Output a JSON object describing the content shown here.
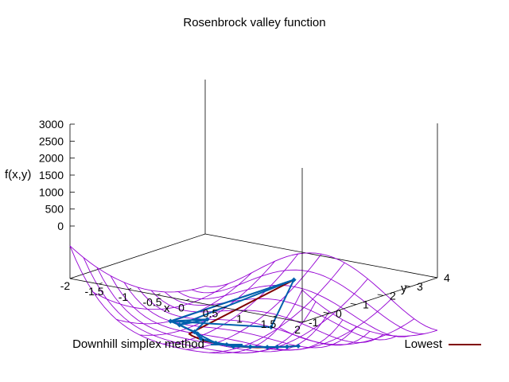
{
  "chart_data": {
    "type": "surface3d",
    "title": "Rosenbrock valley function",
    "xlabel": "x",
    "ylabel": "y",
    "zlabel": "f(x,y)",
    "xlim": [
      -2,
      2
    ],
    "ylim": [
      -1,
      4
    ],
    "zlim": [
      0,
      3000
    ],
    "x_ticks": [
      "-2",
      "-1.5",
      "-1",
      "-0.5",
      "0",
      "0.5",
      "1",
      "1.5",
      "2"
    ],
    "y_ticks": [
      "-1",
      "0",
      "1",
      "2",
      "3",
      "4"
    ],
    "z_ticks": [
      "0",
      "500",
      "1000",
      "1500",
      "2000",
      "2500",
      "3000"
    ],
    "surface": {
      "function": "(1-x)^2 + 100*(y-x^2)^2",
      "color": "#9400d3"
    },
    "series": [
      {
        "name": "Downhill simplex method",
        "color": "#0060ad",
        "marker": "diamond",
        "simplices": [
          [
            [
              -1.2,
              1.0
            ],
            [
              0.3,
              1.5
            ],
            [
              -0.1,
              3.2
            ]
          ],
          [
            [
              -1.2,
              1.0
            ],
            [
              -1.0,
              0.9
            ],
            [
              -0.1,
              3.2
            ]
          ],
          [
            [
              -1.2,
              1.0
            ],
            [
              -1.0,
              0.9
            ],
            [
              -0.8,
              1.5
            ]
          ],
          [
            [
              -1.0,
              0.9
            ],
            [
              -0.8,
              1.5
            ],
            [
              -0.6,
              0.6
            ]
          ],
          [
            [
              -1.0,
              0.9
            ],
            [
              -0.6,
              0.6
            ],
            [
              -0.5,
              0.5
            ]
          ],
          [
            [
              -0.6,
              0.6
            ],
            [
              -0.5,
              0.5
            ],
            [
              -0.3,
              0.2
            ]
          ],
          [
            [
              -0.5,
              0.5
            ],
            [
              -0.3,
              0.2
            ],
            [
              0.0,
              0.1
            ]
          ],
          [
            [
              -0.3,
              0.2
            ],
            [
              0.0,
              0.1
            ],
            [
              0.3,
              0.1
            ]
          ],
          [
            [
              0.0,
              0.1
            ],
            [
              0.3,
              0.1
            ],
            [
              0.5,
              0.3
            ]
          ],
          [
            [
              0.3,
              0.1
            ],
            [
              0.5,
              0.3
            ],
            [
              0.7,
              0.5
            ]
          ],
          [
            [
              0.5,
              0.3
            ],
            [
              0.7,
              0.5
            ],
            [
              0.8,
              0.65
            ]
          ],
          [
            [
              0.7,
              0.5
            ],
            [
              0.8,
              0.65
            ],
            [
              0.9,
              0.8
            ]
          ],
          [
            [
              0.8,
              0.65
            ],
            [
              0.9,
              0.8
            ],
            [
              1.0,
              1.0
            ]
          ]
        ]
      },
      {
        "name": "Lowest",
        "color": "#800000",
        "points": [
          [
            -0.1,
            3.2
          ],
          [
            -0.6,
            0.4
          ],
          [
            -0.5,
            0.3
          ],
          [
            -0.2,
            0.1
          ],
          [
            0.3,
            0.1
          ],
          [
            0.6,
            0.35
          ],
          [
            0.8,
            0.65
          ],
          [
            1.0,
            1.0
          ]
        ]
      }
    ],
    "legend": [
      "bottom-left",
      "bottom-right"
    ]
  }
}
